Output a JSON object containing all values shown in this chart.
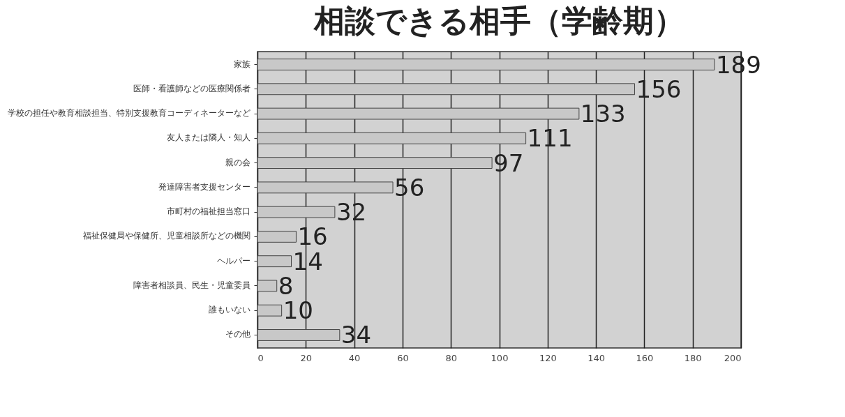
{
  "chart_data": {
    "type": "bar",
    "orientation": "horizontal",
    "title": "相談できる相手（学齢期）",
    "categories": [
      "家族",
      "医師・看護師などの医療関係者",
      "学校の担任や教育相談担当、特別支援教育コーディネーターなど",
      "友人または隣人・知人",
      "親の会",
      "発達障害者支援センター",
      "市町村の福祉担当窓口",
      "福祉保健局や保健所、児童相談所などの機関",
      "ヘルパー",
      "障害者相談員、民生・児童委員",
      "誰もいない",
      "その他"
    ],
    "values": [
      189,
      156,
      133,
      111,
      97,
      56,
      32,
      16,
      14,
      8,
      10,
      34
    ],
    "color": "#c8c8c8",
    "xlim": [
      0,
      200
    ],
    "xticks": [
      0,
      20,
      40,
      60,
      80,
      100,
      120,
      140,
      160,
      180,
      200
    ],
    "grid": "x",
    "data_labels": true
  }
}
